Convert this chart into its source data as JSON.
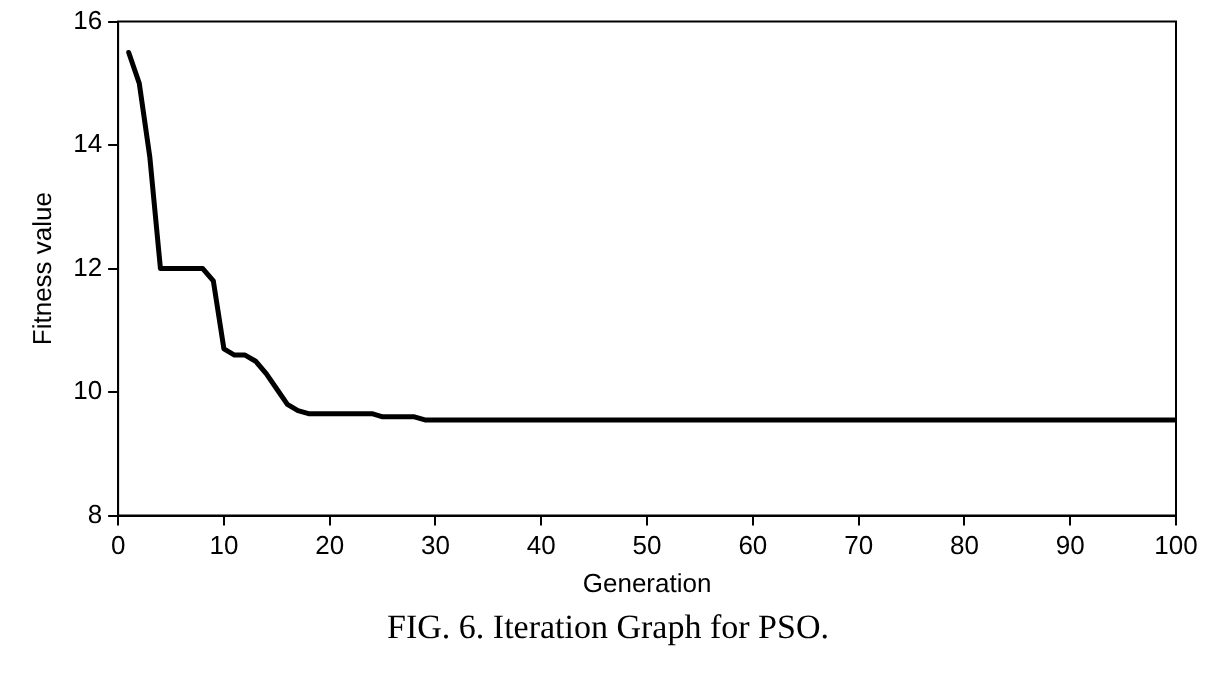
{
  "chart_data": {
    "type": "line",
    "xlabel": "Generation",
    "ylabel": "Fitness value",
    "x": [
      1,
      2,
      3,
      4,
      5,
      7,
      8,
      9,
      10,
      11,
      12,
      13,
      14,
      15,
      16,
      17,
      18,
      24,
      25,
      28,
      29,
      30,
      100
    ],
    "series": [
      {
        "color": "#000000",
        "values": [
          15.5,
          15.0,
          13.8,
          12.0,
          12.0,
          12.0,
          12.0,
          11.8,
          10.7,
          10.6,
          10.6,
          10.5,
          10.3,
          10.05,
          9.8,
          9.7,
          9.65,
          9.65,
          9.6,
          9.6,
          9.55,
          9.55,
          9.55
        ]
      }
    ],
    "xlim": [
      0,
      100
    ],
    "xticks": [
      0,
      10,
      20,
      30,
      40,
      50,
      60,
      70,
      80,
      90,
      100
    ],
    "ylim": [
      8,
      16
    ],
    "yticks": [
      8,
      10,
      12,
      14,
      16
    ],
    "grid": false,
    "legend": false,
    "marker": "none",
    "line_style": "solid",
    "annotations": [
      "FIG. 6. Iteration Graph for PSO."
    ]
  }
}
